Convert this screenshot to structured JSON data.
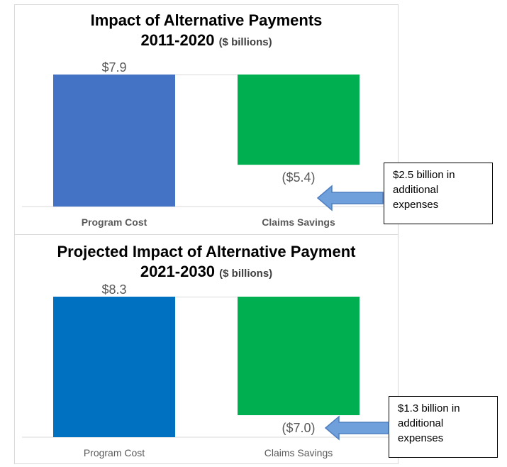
{
  "colors": {
    "program_top": "#4472C4",
    "program_bottom": "#0070C0",
    "savings": "#00B050",
    "arrow_fill": "#6FA0DC",
    "arrow_stroke": "#4F7FC0",
    "axis": "#d9d9d9",
    "label": "#595959"
  },
  "top": {
    "title_line1": "Impact of Alternative Payments",
    "title_line2": "2011-2020",
    "title_units": "($ billions)",
    "callout": [
      "$2.5 billion in",
      "additional",
      "expenses"
    ]
  },
  "bottom": {
    "title_line1": "Projected Impact of Alternative Payment",
    "title_line2": "2021-2030",
    "title_units": "($ billions)",
    "callout": [
      "$1.3 billion in",
      "additional",
      "expenses"
    ]
  },
  "chart_data": [
    {
      "type": "bar",
      "title": "Impact of Alternative Payments 2011-2020 ($ billions)",
      "categories": [
        "Program Cost",
        "Claims Savings"
      ],
      "values": [
        7.9,
        -5.4
      ],
      "data_labels": [
        "$7.9",
        "($5.4)"
      ],
      "waterfall": true,
      "bold_category_labels": true
    },
    {
      "type": "bar",
      "title": "Projected Impact of Alternative Payment 2021-2030 ($ billions)",
      "categories": [
        "Program Cost",
        "Claims Savings"
      ],
      "values": [
        8.3,
        -7.0
      ],
      "data_labels": [
        "$8.3",
        "($7.0)"
      ],
      "waterfall": true,
      "bold_category_labels": false
    }
  ]
}
